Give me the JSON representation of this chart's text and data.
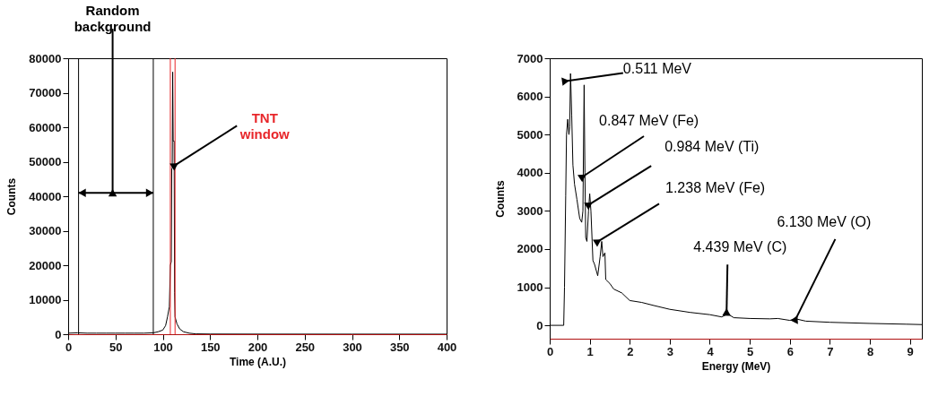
{
  "chart_data": [
    {
      "type": "line",
      "xlabel": "Time (A.U.)",
      "ylabel": "Counts",
      "color": "#000000",
      "x": [
        0,
        10,
        20,
        30,
        40,
        50,
        60,
        70,
        80,
        90,
        95,
        100,
        103,
        105,
        107,
        108,
        109,
        109.5,
        110,
        110.5,
        111,
        112,
        112.5,
        113,
        115,
        118,
        122,
        128,
        135,
        150,
        200,
        300,
        400
      ],
      "values": [
        300,
        400,
        300,
        300,
        300,
        300,
        300,
        300,
        300,
        400,
        700,
        1200,
        2500,
        5000,
        8000,
        20000,
        21000,
        48000,
        48000,
        76000,
        56000,
        56000,
        12000,
        5000,
        3000,
        1500,
        700,
        300,
        100,
        50,
        30,
        20,
        10
      ],
      "xlim": [
        0,
        400
      ],
      "ylim": [
        0,
        80000
      ],
      "xticks": [
        0,
        50,
        100,
        150,
        200,
        250,
        300,
        350,
        400
      ],
      "yticks": [
        0,
        10000,
        20000,
        30000,
        40000,
        50000,
        60000,
        70000,
        80000
      ],
      "ref_lines": [
        {
          "axis": "x",
          "value": 11,
          "color": "#000000"
        },
        {
          "axis": "x",
          "value": 90,
          "color": "#000000"
        },
        {
          "axis": "x",
          "value": 108,
          "color": "#e8262a"
        },
        {
          "axis": "x",
          "value": 113,
          "color": "#e8262a"
        }
      ],
      "annotations": [
        {
          "text": "Random background",
          "x": 47,
          "y": 41000
        },
        {
          "text": "TNT window",
          "x": 113,
          "y": 49000
        }
      ]
    },
    {
      "type": "line",
      "xlabel": "Energy (MeV)",
      "ylabel": "Counts",
      "color": "#000000",
      "x": [
        0,
        0.35,
        0.37,
        0.4,
        0.42,
        0.45,
        0.48,
        0.5,
        0.52,
        0.55,
        0.58,
        0.62,
        0.68,
        0.75,
        0.8,
        0.83,
        0.86,
        0.88,
        0.9,
        0.93,
        0.97,
        1.0,
        1.03,
        1.08,
        1.12,
        1.2,
        1.26,
        1.3,
        1.33,
        1.38,
        1.4,
        1.5,
        1.6,
        1.8,
        2.0,
        2.3,
        2.6,
        3,
        3.5,
        4,
        4.3,
        4.45,
        4.6,
        5,
        5.5,
        5.7,
        6,
        6.15,
        6.4,
        7,
        8,
        8.9,
        9.3
      ],
      "values": [
        0,
        0,
        1000,
        3400,
        5000,
        5400,
        5000,
        5200,
        6600,
        5500,
        4200,
        3700,
        3300,
        2800,
        2700,
        3000,
        6300,
        4000,
        2300,
        2200,
        3000,
        3450,
        3000,
        1700,
        1600,
        1300,
        1800,
        2200,
        1800,
        1900,
        1200,
        1100,
        950,
        850,
        650,
        600,
        520,
        420,
        340,
        280,
        220,
        300,
        200,
        180,
        170,
        180,
        130,
        170,
        110,
        80,
        50,
        30,
        20
      ],
      "xlim": [
        0,
        9.3
      ],
      "ylim": [
        -350,
        7000
      ],
      "xticks": [
        0,
        1,
        2,
        3,
        4,
        5,
        6,
        7,
        8,
        9
      ],
      "yticks": [
        0,
        1000,
        2000,
        3000,
        4000,
        5000,
        6000,
        7000
      ],
      "annotations": [
        {
          "text": "0.511 MeV",
          "x": 0.4,
          "y": 6400
        },
        {
          "text": "0.847 MeV (Fe)",
          "x": 0.83,
          "y": 3900
        },
        {
          "text": "0.984 MeV (Ti)",
          "x": 0.99,
          "y": 3170
        },
        {
          "text": "1.238 MeV (Fe)",
          "x": 1.21,
          "y": 2200
        },
        {
          "text": "4.439 MeV (C)",
          "x": 4.42,
          "y": 350
        },
        {
          "text": "6.130 MeV (O)",
          "x": 6.15,
          "y": 170
        }
      ]
    }
  ]
}
